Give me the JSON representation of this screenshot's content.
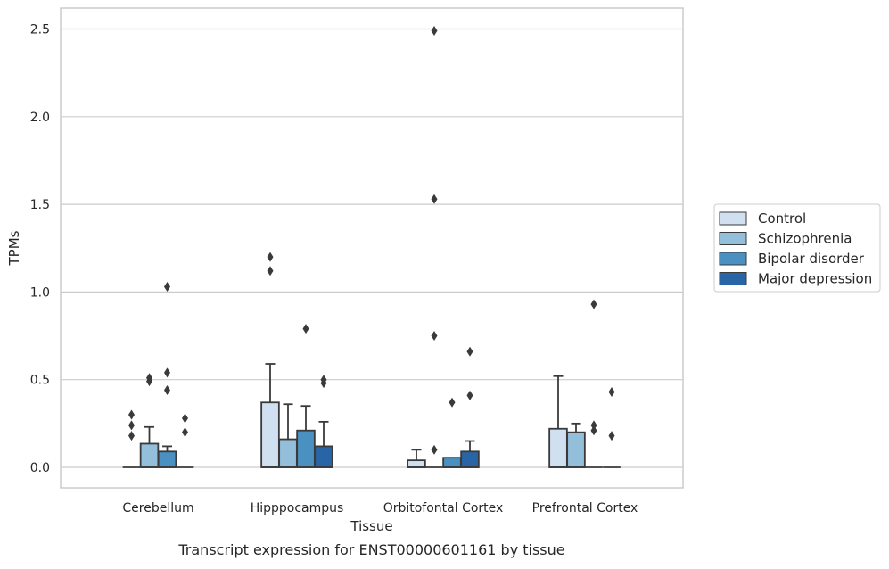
{
  "chart_data": {
    "type": "box",
    "xlabel": "Tissue",
    "ylabel": "TPMs",
    "caption": "Transcript expression for ENST00000601161 by tissue",
    "categories": [
      "Cerebellum",
      "Hipppocampus",
      "Orbitofontal Cortex",
      "Prefrontal Cortex"
    ],
    "yticks": [
      "0.0",
      "0.5",
      "1.0",
      "1.5",
      "2.0",
      "2.5"
    ],
    "ytick_values": [
      0.0,
      0.5,
      1.0,
      1.5,
      2.0,
      2.5
    ],
    "ylim": [
      -0.12,
      2.62
    ],
    "grid": true,
    "legend_position": "right",
    "colors": {
      "Control": "#d0e0f0",
      "Schizophrenia": "#93bfdb",
      "Bipolar disorder": "#4a90c0",
      "Major depression": "#2865a6",
      "edge": "#3a3a3a",
      "grid": "#cccccc",
      "frame": "#cccccc"
    },
    "series": [
      {
        "name": "Control",
        "boxes": [
          {
            "q1": 0.0,
            "median": 0.0,
            "q3": 0.0,
            "whisker_low": 0.0,
            "whisker_high": 0.0,
            "outliers": [
              0.18,
              0.24,
              0.3
            ]
          },
          {
            "q1": 0.0,
            "median": 0.0,
            "q3": 0.37,
            "whisker_low": 0.0,
            "whisker_high": 0.59,
            "outliers": [
              1.12,
              1.2
            ]
          },
          {
            "q1": 0.0,
            "median": 0.0,
            "q3": 0.04,
            "whisker_low": 0.0,
            "whisker_high": 0.1,
            "outliers": []
          },
          {
            "q1": 0.0,
            "median": 0.0,
            "q3": 0.22,
            "whisker_low": 0.0,
            "whisker_high": 0.52,
            "outliers": []
          }
        ]
      },
      {
        "name": "Schizophrenia",
        "boxes": [
          {
            "q1": 0.0,
            "median": 0.0,
            "q3": 0.135,
            "whisker_low": 0.0,
            "whisker_high": 0.23,
            "outliers": [
              0.49,
              0.51
            ]
          },
          {
            "q1": 0.0,
            "median": 0.0,
            "q3": 0.16,
            "whisker_low": 0.0,
            "whisker_high": 0.36,
            "outliers": []
          },
          {
            "q1": 0.0,
            "median": 0.0,
            "q3": 0.0,
            "whisker_low": 0.0,
            "whisker_high": 0.0,
            "outliers": [
              0.1,
              0.75,
              1.53,
              2.49
            ]
          },
          {
            "q1": 0.0,
            "median": 0.0,
            "q3": 0.2,
            "whisker_low": 0.0,
            "whisker_high": 0.25,
            "outliers": []
          }
        ]
      },
      {
        "name": "Bipolar disorder",
        "boxes": [
          {
            "q1": 0.0,
            "median": 0.0,
            "q3": 0.09,
            "whisker_low": 0.0,
            "whisker_high": 0.12,
            "outliers": [
              0.44,
              0.54,
              1.03
            ]
          },
          {
            "q1": 0.0,
            "median": 0.0,
            "q3": 0.21,
            "whisker_low": 0.0,
            "whisker_high": 0.35,
            "outliers": [
              0.79
            ]
          },
          {
            "q1": 0.0,
            "median": 0.0,
            "q3": 0.055,
            "whisker_low": 0.0,
            "whisker_high": 0.055,
            "outliers": [
              0.37
            ]
          },
          {
            "q1": 0.0,
            "median": 0.0,
            "q3": 0.0,
            "whisker_low": 0.0,
            "whisker_high": 0.0,
            "outliers": [
              0.21,
              0.24,
              0.93
            ]
          }
        ]
      },
      {
        "name": "Major depression",
        "boxes": [
          {
            "q1": 0.0,
            "median": 0.0,
            "q3": 0.0,
            "whisker_low": 0.0,
            "whisker_high": 0.0,
            "outliers": [
              0.2,
              0.28
            ]
          },
          {
            "q1": 0.0,
            "median": 0.0,
            "q3": 0.12,
            "whisker_low": 0.0,
            "whisker_high": 0.26,
            "outliers": [
              0.48,
              0.5
            ]
          },
          {
            "q1": 0.0,
            "median": 0.0,
            "q3": 0.09,
            "whisker_low": 0.0,
            "whisker_high": 0.15,
            "outliers": [
              0.41,
              0.66
            ]
          },
          {
            "q1": 0.0,
            "median": 0.0,
            "q3": 0.0,
            "whisker_low": 0.0,
            "whisker_high": 0.0,
            "outliers": [
              0.18,
              0.43
            ]
          }
        ]
      }
    ]
  }
}
